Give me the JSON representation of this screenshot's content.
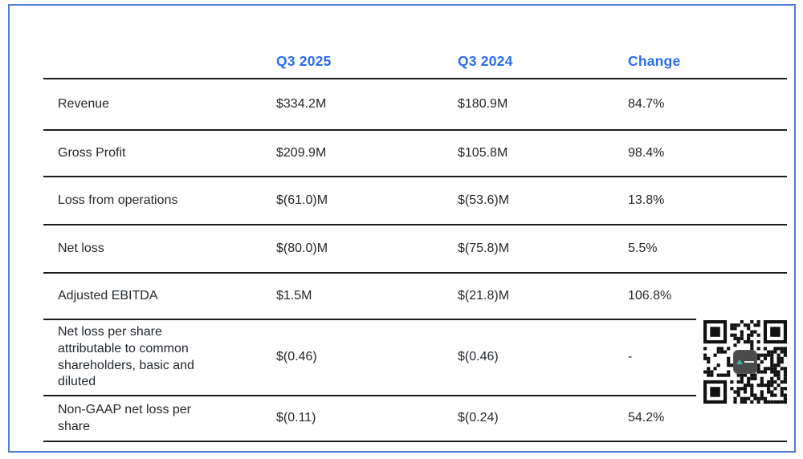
{
  "chart_data": {
    "type": "table",
    "columns": [
      "",
      "Q3 2025",
      "Q3 2024",
      "Change"
    ],
    "rows": [
      {
        "label": "Revenue",
        "q3_2025": "$334.2M",
        "q3_2024": "$180.9M",
        "change": "84.7%"
      },
      {
        "label": "Gross Profit",
        "q3_2025": "$209.9M",
        "q3_2024": "$105.8M",
        "change": "98.4%"
      },
      {
        "label": "Loss from operations",
        "q3_2025": "$(61.0)M",
        "q3_2024": "$(53.6)M",
        "change": "13.8%"
      },
      {
        "label": "Net loss",
        "q3_2025": "$(80.0)M",
        "q3_2024": "$(75.8)M",
        "change": "5.5%"
      },
      {
        "label": "Adjusted EBITDA",
        "q3_2025": "$1.5M",
        "q3_2024": "$(21.8)M",
        "change": "106.8%"
      },
      {
        "label": "Net loss per share attributable to common shareholders, basic and diluted",
        "q3_2025": "$(0.46)",
        "q3_2024": "$(0.46)",
        "change": "-"
      },
      {
        "label": "Non-GAAP net loss per share",
        "q3_2025": "$(0.11)",
        "q3_2024": "$(0.24)",
        "change": "54.2%"
      }
    ]
  },
  "colors": {
    "header_accent": "#2b6cf5",
    "frame_border": "#4b7bd6",
    "table_rule": "#1c1c1c",
    "body_text": "#23282d",
    "qr_logo_bg": "#4b4b4b",
    "qr_logo_accent": "#3fb5a3"
  },
  "icons": {
    "qr_code": "qr-code"
  }
}
